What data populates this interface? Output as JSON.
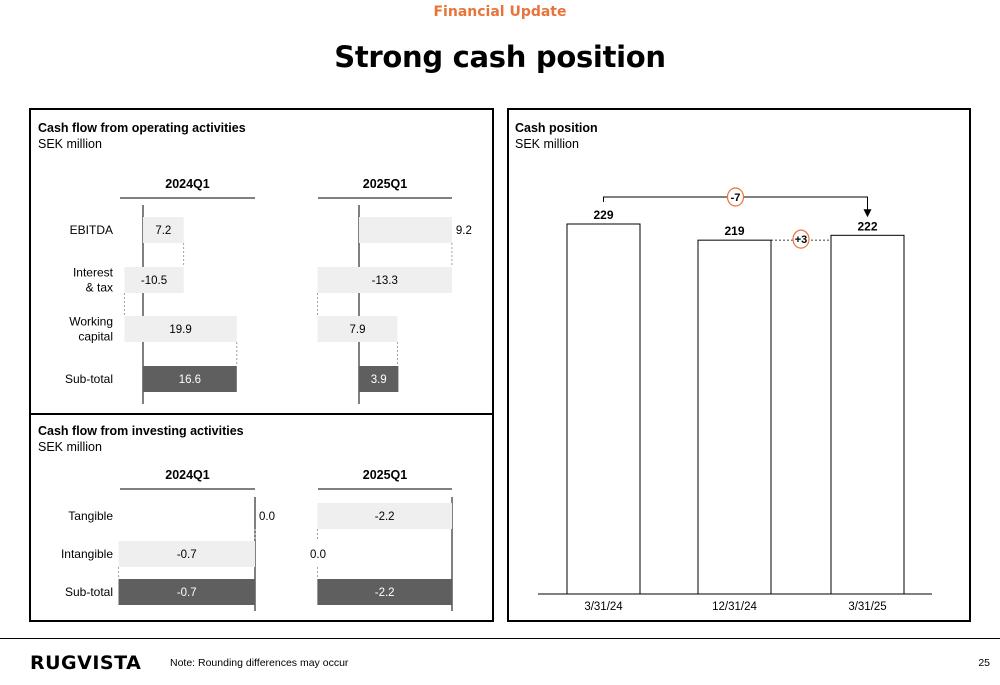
{
  "header": {
    "eyebrow": "Financial Update",
    "title": "Strong cash position"
  },
  "colors": {
    "accent": "#e8743b",
    "light_bar": "#efefef",
    "dark_bar": "#5f5f5f"
  },
  "panels": {
    "operating": {
      "title": "Cash flow from operating activities",
      "subtitle": "SEK million"
    },
    "investing": {
      "title": "Cash flow from investing activities",
      "subtitle": "SEK million"
    },
    "cash": {
      "title": "Cash position",
      "subtitle": "SEK million"
    }
  },
  "footer": {
    "logo": "RUGVISTA",
    "note": "Note: Rounding differences may occur",
    "page": "25"
  },
  "chart_data": [
    {
      "type": "bar",
      "name": "operating",
      "categories": [
        "EBITDA",
        "Interest & tax",
        "Working capital",
        "Sub-total"
      ],
      "category_lines": [
        [
          "EBITDA"
        ],
        [
          "Interest",
          "& tax"
        ],
        [
          "Working",
          "capital"
        ],
        [
          "Sub-total"
        ]
      ],
      "periods": [
        "2024Q1",
        "2025Q1"
      ],
      "series": [
        {
          "name": "2024Q1",
          "values": [
            7.2,
            -10.5,
            19.9,
            16.6
          ],
          "labels": [
            "7.2",
            "-10.5",
            "19.9",
            "16.6"
          ]
        },
        {
          "name": "2025Q1",
          "values": [
            9.2,
            -13.3,
            7.9,
            3.9
          ],
          "labels": [
            "9.2",
            "-13.3",
            "7.9",
            "3.9"
          ]
        }
      ]
    },
    {
      "type": "bar",
      "name": "investing",
      "categories": [
        "Tangible",
        "Intangible",
        "Sub-total"
      ],
      "category_lines": [
        [
          "Tangible"
        ],
        [
          "Intangible"
        ],
        [
          "Sub-total"
        ]
      ],
      "periods": [
        "2024Q1",
        "2025Q1"
      ],
      "series": [
        {
          "name": "2024Q1",
          "values": [
            0.0,
            -0.7,
            -0.7
          ],
          "labels": [
            "0.0",
            "-0.7",
            "-0.7"
          ]
        },
        {
          "name": "2025Q1",
          "values": [
            -2.2,
            0.0,
            -2.2
          ],
          "labels": [
            "-2.2",
            "0.0",
            "-2.2"
          ]
        }
      ]
    },
    {
      "type": "bar",
      "name": "cash",
      "categories": [
        "3/31/24",
        "12/31/24",
        "3/31/25"
      ],
      "values": [
        229,
        219,
        222
      ],
      "labels": [
        "229",
        "219",
        "222"
      ],
      "changes": [
        {
          "from": "3/31/24",
          "to": "3/31/25",
          "label": "-7"
        },
        {
          "from": "12/31/24",
          "to": "3/31/25",
          "label": "+3"
        }
      ]
    }
  ]
}
